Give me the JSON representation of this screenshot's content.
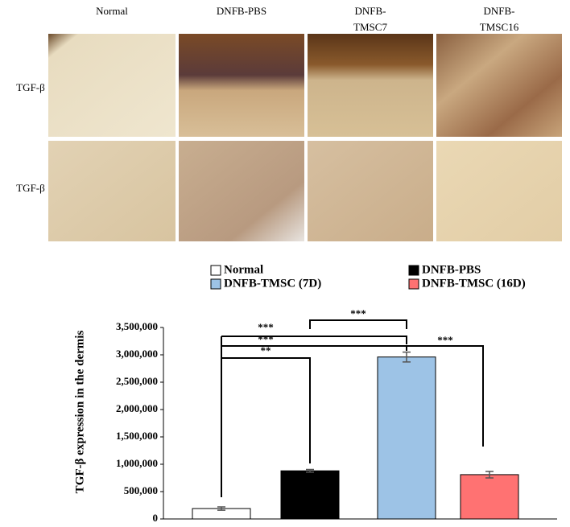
{
  "figure": {
    "columns": [
      [
        "Normal"
      ],
      [
        "DNFB-PBS"
      ],
      [
        "DNFB-",
        "TMSC7"
      ],
      [
        "DNFB-",
        "TMSC16"
      ]
    ],
    "row_labels": [
      "TGF-β",
      "TGF-β"
    ]
  },
  "chart_data": {
    "type": "bar",
    "ylabel": "TGF-β expression in the dermis",
    "categories": [
      "Normal",
      "DNFB-PBS",
      "DNFB-TMSC (7D)",
      "DNFB-TMSC (16D)"
    ],
    "values": [
      190000,
      880000,
      2960000,
      810000
    ],
    "errors": [
      30000,
      25000,
      90000,
      60000
    ],
    "colors": [
      "#ffffff",
      "#000000",
      "#9dc3e6",
      "#ff7272"
    ],
    "ylim": [
      0,
      3500000
    ],
    "yticks": [
      0,
      {
        "value": 500000,
        "label": "500,000"
      },
      {
        "value": 1000000,
        "label": "1,000,000"
      },
      {
        "value": 1500000,
        "label": "1,500,000"
      },
      {
        "value": 2000000,
        "label": "2,000,000"
      },
      {
        "value": 2500000,
        "label": "2,500,000"
      },
      {
        "value": 3000000,
        "label": "3,000,000"
      },
      {
        "value": 3500000,
        "label": "3,500,000"
      }
    ],
    "significance": [
      "***",
      "***",
      "***",
      "**",
      "***"
    ]
  }
}
